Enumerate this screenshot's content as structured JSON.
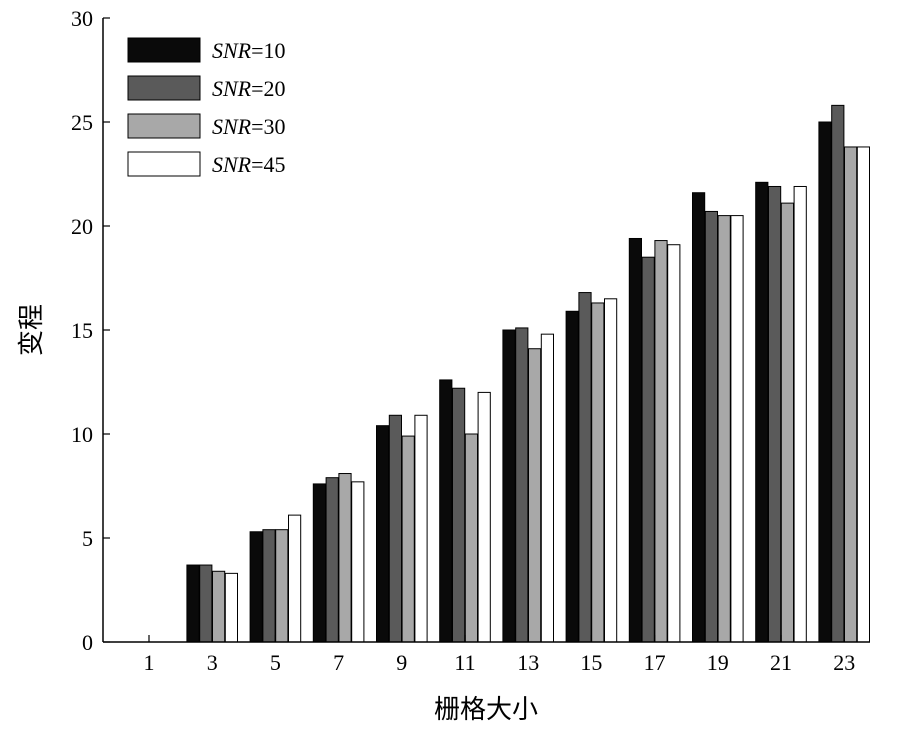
{
  "chart_data": {
    "type": "bar",
    "title": "",
    "xlabel": "栅格大小",
    "ylabel": "变程",
    "categories": [
      "1",
      "3",
      "5",
      "7",
      "9",
      "11",
      "13",
      "15",
      "17",
      "19",
      "21",
      "23"
    ],
    "yticks": [
      "0",
      "5",
      "10",
      "15",
      "20",
      "25",
      "30"
    ],
    "ylim": [
      0,
      30
    ],
    "grid": false,
    "legend_position": "top-left",
    "series": [
      {
        "name": "SNR=10",
        "name_italic": "SNR",
        "name_rest": "=10",
        "color": "#0a0a0a",
        "values": [
          0,
          3.7,
          5.3,
          7.6,
          10.4,
          12.6,
          15.0,
          15.9,
          19.4,
          21.6,
          22.1,
          25.0
        ]
      },
      {
        "name": "SNR=20",
        "name_italic": "SNR",
        "name_rest": "=20",
        "color": "#5a5a5a",
        "values": [
          0,
          3.7,
          5.4,
          7.9,
          10.9,
          12.2,
          15.1,
          16.8,
          18.5,
          20.7,
          21.9,
          25.8
        ]
      },
      {
        "name": "SNR=30",
        "name_italic": "SNR",
        "name_rest": "=30",
        "color": "#a8a8a8",
        "values": [
          0,
          3.4,
          5.4,
          8.1,
          9.9,
          10.0,
          14.1,
          16.3,
          19.3,
          20.5,
          21.1,
          23.8
        ]
      },
      {
        "name": "SNR=45",
        "name_italic": "SNR",
        "name_rest": "=45",
        "color": "#ffffff",
        "values": [
          0,
          3.3,
          6.1,
          7.7,
          10.9,
          12.0,
          14.8,
          16.5,
          19.1,
          20.5,
          21.9,
          23.8
        ]
      }
    ]
  }
}
